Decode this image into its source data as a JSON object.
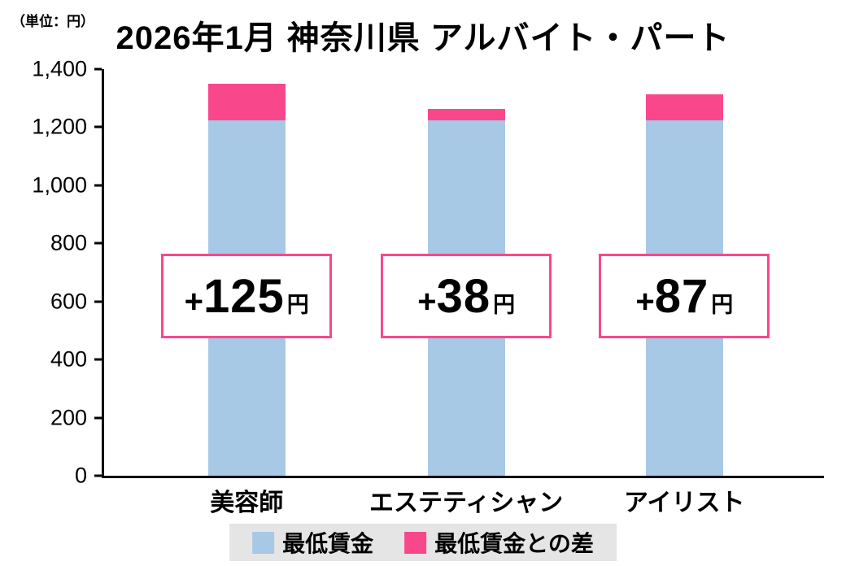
{
  "unit_label": "（単位：円）",
  "title": "2026年1月 神奈川県 アルバイト・パート",
  "colors": {
    "base_blue": "#A7C9E6",
    "diff_pink": "#F9478C",
    "annotation_border": "#F9478C",
    "legend_bg": "#E5E5E5",
    "axis": "#000000"
  },
  "y_axis": {
    "ticks": [
      "1,400",
      "1,200",
      "1,000",
      "800",
      "600",
      "400",
      "200",
      "0"
    ]
  },
  "chart_data": {
    "type": "bar",
    "stacked": true,
    "title": "2026年1月 神奈川県 アルバイト・パート",
    "unit": "円",
    "categories": [
      "美容師",
      "エステティシャン",
      "アイリスト"
    ],
    "series": [
      {
        "name": "最低賃金",
        "color": "#A7C9E6",
        "values": [
          1225,
          1225,
          1225
        ]
      },
      {
        "name": "最低賃金との差",
        "color": "#F9478C",
        "values": [
          125,
          38,
          87
        ]
      }
    ],
    "totals": [
      1350,
      1263,
      1312
    ],
    "annotations": [
      {
        "plus": "+",
        "value": "125",
        "unit": "円"
      },
      {
        "plus": "+",
        "value": "38",
        "unit": "円"
      },
      {
        "plus": "+",
        "value": "87",
        "unit": "円"
      }
    ],
    "ylim": [
      0,
      1400
    ],
    "y_tick_step": 200,
    "grid": false,
    "legend_position": "bottom"
  },
  "legend": {
    "items": [
      {
        "label": "最低賃金",
        "color": "#A7C9E6"
      },
      {
        "label": "最低賃金との差",
        "color": "#F9478C"
      }
    ]
  }
}
